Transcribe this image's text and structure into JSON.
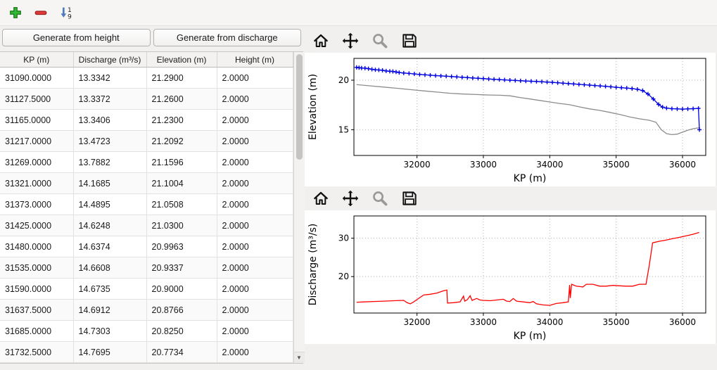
{
  "buttons": {
    "generate_height": "Generate from height",
    "generate_discharge": "Generate from discharge"
  },
  "icons": {
    "add": "plus",
    "remove": "minus",
    "sort": "sort-ascending-1-9",
    "scroll_down": "▼",
    "plot_toolbar": [
      "home",
      "pan",
      "zoom",
      "save"
    ]
  },
  "colors": {
    "add_icon_green": "#35b535",
    "remove_icon_red": "#e03c3c",
    "sort_icon_blue": "#4f7cc0",
    "elevation_series_blue": "#0000e0",
    "elevation_series_gray": "#8c8c8c",
    "discharge_series_red": "#ff0000"
  },
  "table": {
    "columns": [
      "KP (m)",
      "Discharge (m³/s)",
      "Elevation (m)",
      "Height (m)"
    ],
    "rows": [
      [
        "31090.0000",
        "13.3342",
        "21.2900",
        "2.0000"
      ],
      [
        "31127.5000",
        "13.3372",
        "21.2600",
        "2.0000"
      ],
      [
        "31165.0000",
        "13.3406",
        "21.2300",
        "2.0000"
      ],
      [
        "31217.0000",
        "13.4723",
        "21.2092",
        "2.0000"
      ],
      [
        "31269.0000",
        "13.7882",
        "21.1596",
        "2.0000"
      ],
      [
        "31321.0000",
        "14.1685",
        "21.1004",
        "2.0000"
      ],
      [
        "31373.0000",
        "14.4895",
        "21.0508",
        "2.0000"
      ],
      [
        "31425.0000",
        "14.6248",
        "21.0300",
        "2.0000"
      ],
      [
        "31480.0000",
        "14.6374",
        "20.9963",
        "2.0000"
      ],
      [
        "31535.0000",
        "14.6608",
        "20.9337",
        "2.0000"
      ],
      [
        "31590.0000",
        "14.6735",
        "20.9000",
        "2.0000"
      ],
      [
        "31637.5000",
        "14.6912",
        "20.8766",
        "2.0000"
      ],
      [
        "31685.0000",
        "14.7303",
        "20.8250",
        "2.0000"
      ],
      [
        "31732.5000",
        "14.7695",
        "20.7734",
        "2.0000"
      ]
    ]
  },
  "chart_data": [
    {
      "type": "line",
      "title": "",
      "xlabel": "KP (m)",
      "ylabel": "Elevation (m)",
      "xlim": [
        31050,
        36350
      ],
      "ylim": [
        12.4,
        22.2
      ],
      "xticks": [
        32000,
        33000,
        34000,
        35000,
        36000
      ],
      "yticks": [
        15,
        20
      ],
      "grid": true,
      "series": [
        {
          "name": "gray-line",
          "color": "#8c8c8c",
          "marker": "none",
          "points": [
            [
              31090,
              19.55
            ],
            [
              31300,
              19.42
            ],
            [
              31500,
              19.3
            ],
            [
              31700,
              19.18
            ],
            [
              31900,
              19.05
            ],
            [
              32100,
              18.92
            ],
            [
              32300,
              18.8
            ],
            [
              32500,
              18.68
            ],
            [
              32700,
              18.6
            ],
            [
              32900,
              18.55
            ],
            [
              33000,
              18.52
            ],
            [
              33100,
              18.5
            ],
            [
              33250,
              18.48
            ],
            [
              33400,
              18.42
            ],
            [
              33550,
              18.25
            ],
            [
              33700,
              18.1
            ],
            [
              33850,
              17.95
            ],
            [
              34000,
              17.8
            ],
            [
              34150,
              17.65
            ],
            [
              34300,
              17.52
            ],
            [
              34450,
              17.3
            ],
            [
              34600,
              17.1
            ],
            [
              34750,
              16.95
            ],
            [
              34900,
              16.75
            ],
            [
              35050,
              16.55
            ],
            [
              35200,
              16.3
            ],
            [
              35350,
              16.1
            ],
            [
              35500,
              15.95
            ],
            [
              35600,
              15.75
            ],
            [
              35680,
              15.0
            ],
            [
              35760,
              14.6
            ],
            [
              35840,
              14.5
            ],
            [
              35920,
              14.55
            ],
            [
              36000,
              14.75
            ],
            [
              36080,
              14.95
            ],
            [
              36160,
              15.1
            ],
            [
              36250,
              15.2
            ]
          ]
        },
        {
          "name": "blue-plus-line",
          "color": "#0000e0",
          "marker": "+",
          "points": [
            [
              31090,
              21.29
            ],
            [
              31127,
              21.26
            ],
            [
              31165,
              21.23
            ],
            [
              31217,
              21.21
            ],
            [
              31269,
              21.16
            ],
            [
              31321,
              21.1
            ],
            [
              31373,
              21.05
            ],
            [
              31425,
              21.03
            ],
            [
              31480,
              21.0
            ],
            [
              31535,
              20.93
            ],
            [
              31590,
              20.9
            ],
            [
              31637,
              20.88
            ],
            [
              31685,
              20.83
            ],
            [
              31732,
              20.77
            ],
            [
              31800,
              20.72
            ],
            [
              31880,
              20.68
            ],
            [
              31960,
              20.63
            ],
            [
              32040,
              20.58
            ],
            [
              32120,
              20.54
            ],
            [
              32200,
              20.5
            ],
            [
              32280,
              20.46
            ],
            [
              32360,
              20.43
            ],
            [
              32440,
              20.4
            ],
            [
              32520,
              20.37
            ],
            [
              32600,
              20.33
            ],
            [
              32680,
              20.29
            ],
            [
              32760,
              20.26
            ],
            [
              32840,
              20.22
            ],
            [
              32920,
              20.19
            ],
            [
              33000,
              20.16
            ],
            [
              33080,
              20.12
            ],
            [
              33160,
              20.09
            ],
            [
              33240,
              20.06
            ],
            [
              33320,
              20.03
            ],
            [
              33400,
              20.0
            ],
            [
              33480,
              19.97
            ],
            [
              33560,
              19.94
            ],
            [
              33640,
              19.91
            ],
            [
              33720,
              19.89
            ],
            [
              33800,
              19.87
            ],
            [
              33880,
              19.84
            ],
            [
              33960,
              19.81
            ],
            [
              34040,
              19.78
            ],
            [
              34120,
              19.74
            ],
            [
              34200,
              19.7
            ],
            [
              34280,
              19.66
            ],
            [
              34360,
              19.62
            ],
            [
              34440,
              19.58
            ],
            [
              34520,
              19.54
            ],
            [
              34600,
              19.5
            ],
            [
              34680,
              19.46
            ],
            [
              34760,
              19.42
            ],
            [
              34840,
              19.38
            ],
            [
              34920,
              19.33
            ],
            [
              35000,
              19.28
            ],
            [
              35080,
              19.24
            ],
            [
              35160,
              19.2
            ],
            [
              35240,
              19.15
            ],
            [
              35320,
              19.08
            ],
            [
              35400,
              18.95
            ],
            [
              35480,
              18.6
            ],
            [
              35560,
              18.1
            ],
            [
              35640,
              17.55
            ],
            [
              35700,
              17.28
            ],
            [
              35760,
              17.18
            ],
            [
              35840,
              17.12
            ],
            [
              35920,
              17.1
            ],
            [
              36000,
              17.08
            ],
            [
              36080,
              17.1
            ],
            [
              36160,
              17.12
            ],
            [
              36240,
              17.15
            ],
            [
              36255,
              15.0
            ]
          ]
        }
      ]
    },
    {
      "type": "line",
      "title": "",
      "xlabel": "KP (m)",
      "ylabel": "Discharge (m³/s)",
      "xlim": [
        31050,
        36350
      ],
      "ylim": [
        10.5,
        35.8
      ],
      "xticks": [
        32000,
        33000,
        34000,
        35000,
        36000
      ],
      "yticks": [
        20,
        30
      ],
      "grid": true,
      "series": [
        {
          "name": "red-line",
          "color": "#ff0000",
          "marker": "none",
          "points": [
            [
              31090,
              13.3
            ],
            [
              31200,
              13.4
            ],
            [
              31350,
              13.5
            ],
            [
              31500,
              13.6
            ],
            [
              31650,
              13.7
            ],
            [
              31800,
              13.8
            ],
            [
              31850,
              13.2
            ],
            [
              31900,
              12.9
            ],
            [
              31950,
              13.4
            ],
            [
              32000,
              14.0
            ],
            [
              32100,
              15.2
            ],
            [
              32200,
              15.4
            ],
            [
              32300,
              15.7
            ],
            [
              32400,
              16.3
            ],
            [
              32450,
              16.5
            ],
            [
              32460,
              13.1
            ],
            [
              32550,
              13.2
            ],
            [
              32650,
              13.4
            ],
            [
              32700,
              14.9
            ],
            [
              32720,
              13.6
            ],
            [
              32760,
              14.0
            ],
            [
              32800,
              15.0
            ],
            [
              32830,
              13.8
            ],
            [
              32900,
              14.3
            ],
            [
              32950,
              13.9
            ],
            [
              33000,
              13.8
            ],
            [
              33100,
              13.7
            ],
            [
              33200,
              13.9
            ],
            [
              33300,
              14.1
            ],
            [
              33350,
              13.6
            ],
            [
              33400,
              13.5
            ],
            [
              33450,
              14.3
            ],
            [
              33500,
              13.6
            ],
            [
              33600,
              13.4
            ],
            [
              33700,
              13.2
            ],
            [
              33750,
              13.5
            ],
            [
              33800,
              12.9
            ],
            [
              33900,
              12.6
            ],
            [
              34000,
              12.5
            ],
            [
              34100,
              13.0
            ],
            [
              34200,
              13.2
            ],
            [
              34280,
              13.4
            ],
            [
              34300,
              17.8
            ],
            [
              34310,
              14.4
            ],
            [
              34330,
              18.0
            ],
            [
              34400,
              17.5
            ],
            [
              34500,
              17.3
            ],
            [
              34550,
              18.0
            ],
            [
              34650,
              18.0
            ],
            [
              34750,
              17.5
            ],
            [
              34850,
              17.5
            ],
            [
              34950,
              17.7
            ],
            [
              35050,
              17.6
            ],
            [
              35150,
              17.5
            ],
            [
              35250,
              17.5
            ],
            [
              35350,
              18.0
            ],
            [
              35450,
              18.0
            ],
            [
              35500,
              23.0
            ],
            [
              35550,
              28.8
            ],
            [
              35650,
              29.2
            ],
            [
              35750,
              29.5
            ],
            [
              35850,
              29.9
            ],
            [
              35950,
              30.2
            ],
            [
              36050,
              30.6
            ],
            [
              36150,
              31.0
            ],
            [
              36250,
              31.5
            ]
          ]
        }
      ]
    }
  ]
}
